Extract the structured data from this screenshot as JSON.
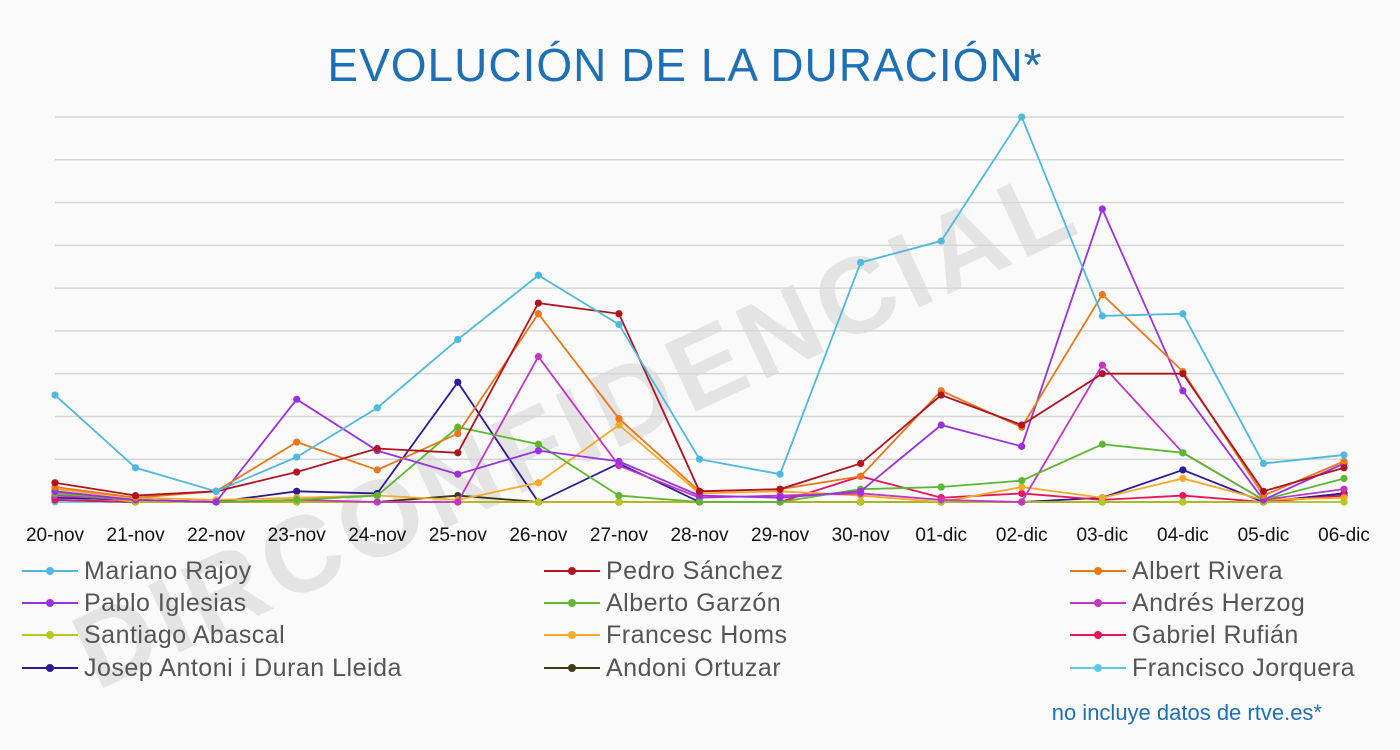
{
  "chart_data": {
    "type": "line",
    "title": "EVOLUCIÓN DE LA DURACIÓN*",
    "footnote": "no incluye datos de rtve.es*",
    "watermark": "DIRCONFIDENCIAL",
    "categories": [
      "20-nov",
      "21-nov",
      "22-nov",
      "23-nov",
      "24-nov",
      "25-nov",
      "26-nov",
      "27-nov",
      "28-nov",
      "29-nov",
      "30-nov",
      "01-dic",
      "02-dic",
      "03-dic",
      "04-dic",
      "05-dic",
      "06-dic"
    ],
    "ylim": [
      0,
      9
    ],
    "grid": true,
    "legend_placement": "bottom",
    "series": [
      {
        "name": "Mariano Rajoy",
        "color": "#4fb8e0",
        "values": [
          2.5,
          0.8,
          0.25,
          1.05,
          2.2,
          3.8,
          5.3,
          4.15,
          1.0,
          0.65,
          5.6,
          6.1,
          9.0,
          4.35,
          4.4,
          0.9,
          1.1
        ]
      },
      {
        "name": "Pedro Sánchez",
        "color": "#b3121f",
        "values": [
          0.45,
          0.15,
          0.25,
          0.7,
          1.25,
          1.15,
          4.65,
          4.4,
          0.25,
          0.3,
          0.9,
          2.5,
          1.8,
          3.0,
          3.0,
          0.25,
          0.8
        ]
      },
      {
        "name": "Albert Rivera",
        "color": "#e8781a",
        "values": [
          0.35,
          0.1,
          0.25,
          1.4,
          0.75,
          1.6,
          4.4,
          1.95,
          0.25,
          0.3,
          0.6,
          2.6,
          1.75,
          4.85,
          3.05,
          0.15,
          0.95
        ]
      },
      {
        "name": "Pablo Iglesias",
        "color": "#9b30e0",
        "values": [
          0.25,
          0.05,
          0.0,
          2.4,
          1.2,
          0.65,
          1.2,
          0.95,
          0.15,
          0.1,
          0.25,
          1.8,
          1.3,
          6.85,
          2.6,
          0.05,
          0.9
        ]
      },
      {
        "name": "Alberto Garzón",
        "color": "#5cb82e",
        "values": [
          0.2,
          0.05,
          0.0,
          0.05,
          0.15,
          1.75,
          1.35,
          0.15,
          0.0,
          0.0,
          0.3,
          0.35,
          0.5,
          1.35,
          1.15,
          0.05,
          0.55
        ]
      },
      {
        "name": "Andrés Herzog",
        "color": "#c236c2",
        "values": [
          0.15,
          0.05,
          0.0,
          0.05,
          0.0,
          0.0,
          3.4,
          0.85,
          0.1,
          0.15,
          0.2,
          0.05,
          0.0,
          3.2,
          1.15,
          0.05,
          0.3
        ]
      },
      {
        "name": "Santiago Abascal",
        "color": "#b8c81a",
        "values": [
          0.25,
          0.0,
          0.0,
          0.0,
          0.0,
          0.0,
          0.0,
          0.0,
          0.0,
          0.0,
          0.0,
          0.0,
          0.0,
          0.0,
          0.0,
          0.0,
          0.0
        ]
      },
      {
        "name": "Francesc Homs",
        "color": "#f7a826",
        "values": [
          0.3,
          0.1,
          0.05,
          0.1,
          0.15,
          0.05,
          0.45,
          1.8,
          0.2,
          0.25,
          0.15,
          0.0,
          0.35,
          0.1,
          0.55,
          0.05,
          0.1
        ]
      },
      {
        "name": "Gabriel Rufián",
        "color": "#e8155a",
        "values": [
          0.05,
          0.0,
          0.0,
          0.0,
          0.0,
          0.0,
          0.0,
          0.0,
          0.0,
          0.0,
          0.6,
          0.1,
          0.2,
          0.05,
          0.15,
          0.0,
          0.15
        ]
      },
      {
        "name": "Josep Antoni i Duran Lleida",
        "color": "#2b1a99",
        "values": [
          0.1,
          0.05,
          0.0,
          0.25,
          0.2,
          2.8,
          0.0,
          0.9,
          0.0,
          0.0,
          0.0,
          0.0,
          0.0,
          0.1,
          0.75,
          0.0,
          0.2
        ]
      },
      {
        "name": "Andoni Ortuzar",
        "color": "#3d3a16",
        "values": [
          0.05,
          0.0,
          0.0,
          0.0,
          0.0,
          0.15,
          0.0,
          0.0,
          0.0,
          0.0,
          0.0,
          0.0,
          0.0,
          0.0,
          0.0,
          0.0,
          0.2
        ]
      },
      {
        "name": "Francisco Jorquera",
        "color": "#5ec8e8",
        "values": [
          0.0,
          0.0,
          0.0,
          0.0,
          0.0,
          0.0,
          0.0,
          0.0,
          0.0,
          0.0,
          0.0,
          0.0,
          0.0,
          0.0,
          0.0,
          0.0,
          0.0
        ]
      }
    ]
  }
}
